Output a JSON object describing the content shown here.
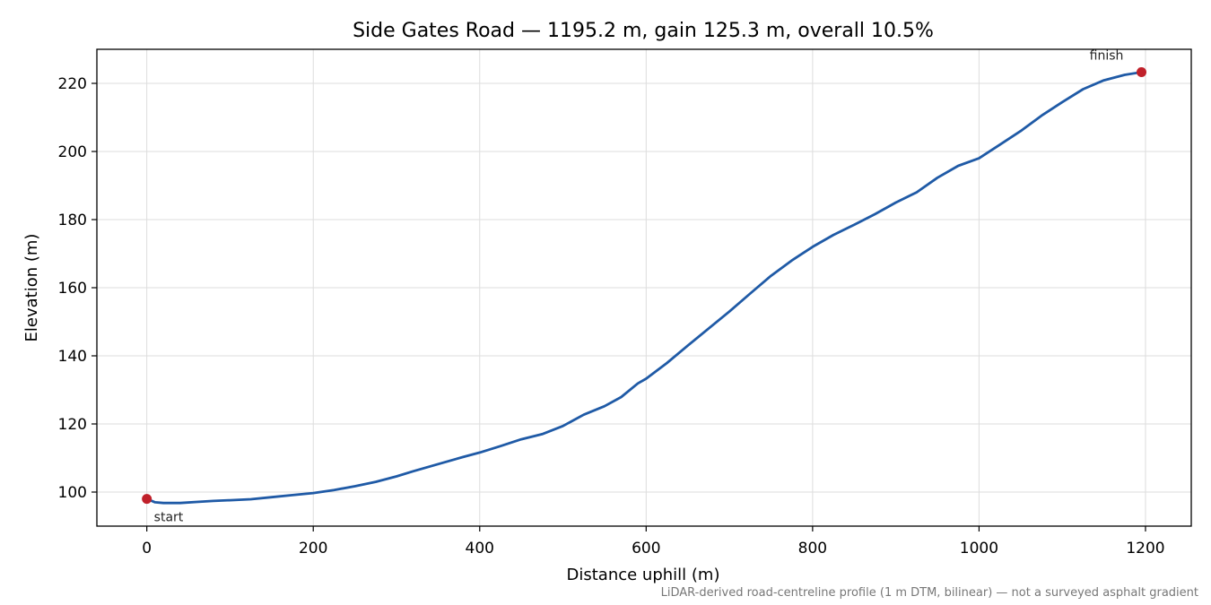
{
  "chart_data": {
    "type": "line",
    "title": "Side Gates Road — 1195.2 m, gain 125.3 m, overall 10.5%",
    "xlabel": "Distance uphill (m)",
    "ylabel": "Elevation (m)",
    "xlim": [
      -60,
      1255
    ],
    "ylim": [
      90,
      230
    ],
    "xticks": [
      0,
      200,
      400,
      600,
      800,
      1000,
      1200
    ],
    "yticks": [
      100,
      120,
      140,
      160,
      180,
      200,
      220
    ],
    "grid": true,
    "line_color": "#1f5aa6",
    "marker_color": "#c0202a",
    "series": [
      {
        "x": [
          0,
          10,
          20,
          40,
          60,
          80,
          100,
          125,
          150,
          175,
          200,
          225,
          250,
          275,
          300,
          320,
          350,
          380,
          400,
          425,
          450,
          475,
          500,
          525,
          550,
          570,
          590,
          600,
          625,
          650,
          675,
          700,
          725,
          750,
          775,
          800,
          825,
          850,
          875,
          900,
          925,
          950,
          975,
          1000,
          1025,
          1050,
          1075,
          1100,
          1125,
          1150,
          1175,
          1195.2
        ],
        "y": [
          98,
          97,
          96.8,
          96.8,
          97.1,
          97.4,
          97.6,
          97.9,
          98.5,
          99.1,
          99.7,
          100.6,
          101.7,
          103.0,
          104.6,
          106.1,
          108.2,
          110.3,
          111.6,
          113.5,
          115.5,
          117.0,
          119.4,
          122.7,
          125.2,
          127.9,
          131.9,
          133.3,
          137.9,
          143.0,
          148.0,
          153.0,
          158.3,
          163.5,
          168.0,
          172.0,
          175.5,
          178.5,
          181.6,
          185.0,
          188.0,
          192.3,
          195.8,
          198.0,
          202.0,
          206.0,
          210.5,
          214.5,
          218.3,
          220.9,
          222.5,
          223.3
        ]
      }
    ],
    "annotations": {
      "start_label": "start",
      "finish_label": "finish",
      "start_point": {
        "x": 0,
        "y": 98
      },
      "finish_point": {
        "x": 1195.2,
        "y": 223.3
      }
    },
    "footnote": "LiDAR-derived road-centreline profile (1 m DTM, bilinear) — not a surveyed asphalt gradient"
  }
}
